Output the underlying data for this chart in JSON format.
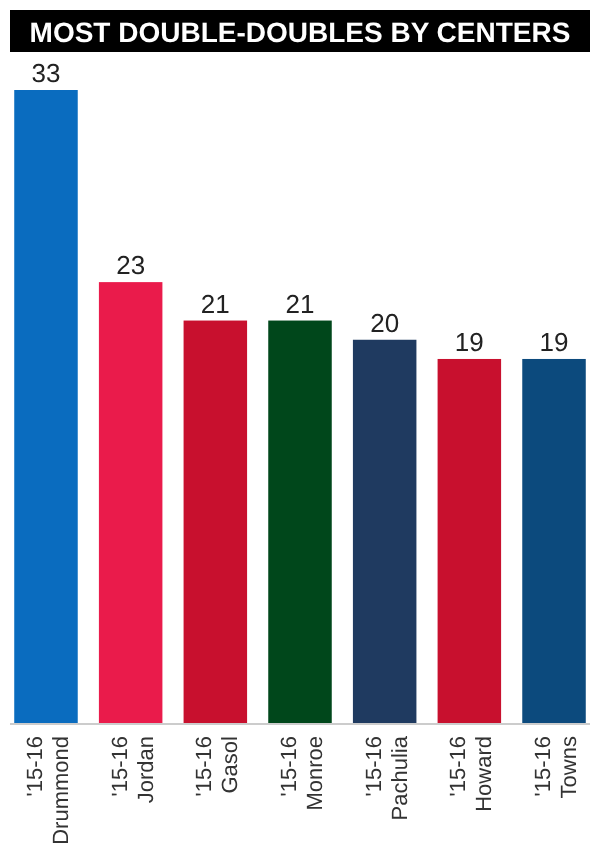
{
  "chart_data": {
    "type": "bar",
    "title": "MOST DOUBLE-DOUBLES BY CENTERS",
    "categories": [
      "'15-16 Drummond",
      "'15-16 Jordan",
      "'15-16 Gasol",
      "'15-16 Monroe",
      "'15-16 Pachulia",
      "'15-16 Howard",
      "'15-16 Towns"
    ],
    "values": [
      33,
      23,
      21,
      21,
      20,
      19,
      19
    ],
    "colors": [
      "#0a6cbf",
      "#ea1b4b",
      "#c8102e",
      "#00471b",
      "#1f3a60",
      "#c8102e",
      "#0c4a7d"
    ],
    "data_labels": true
  }
}
